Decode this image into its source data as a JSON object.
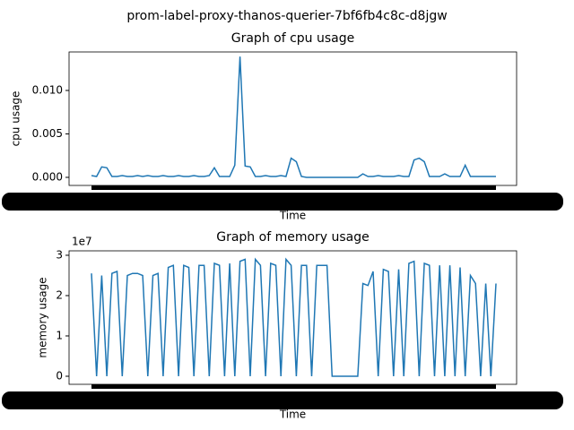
{
  "suptitle": "prom-label-proxy-thanos-querier-7bf6fb4c8c-d8jgw",
  "chart_data": [
    {
      "type": "line",
      "title": "Graph of cpu usage",
      "xlabel": "Time",
      "ylabel": "cpu usage",
      "color": "#1f77b4",
      "ylim": [
        -0.00093,
        0.01443
      ],
      "yticks": [
        {
          "value": 0,
          "label": "0.000"
        },
        {
          "value": 0.005,
          "label": "0.005"
        },
        {
          "value": 0.01,
          "label": "0.010"
        }
      ],
      "values": [
        0.0002,
        0.0001,
        0.0012,
        0.0011,
        0.0001,
        0.0001,
        0.0002,
        0.0001,
        0.0001,
        0.0002,
        0.0001,
        0.0002,
        0.0001,
        0.0001,
        0.0002,
        0.0001,
        0.0001,
        0.0002,
        0.0001,
        0.0001,
        0.0002,
        0.0001,
        0.0001,
        0.0002,
        0.0011,
        0.0001,
        0.0001,
        0.0001,
        0.0014,
        0.0139,
        0.0013,
        0.0012,
        0.0001,
        0.0001,
        0.0002,
        0.0001,
        0.0001,
        0.0002,
        0.0001,
        0.0022,
        0.0018,
        0.0001,
        0,
        0,
        0,
        0,
        0,
        0,
        0,
        0,
        0,
        0,
        0,
        0.0004,
        0.0001,
        0.0001,
        0.0002,
        0.0001,
        0.0001,
        0.0001,
        0.0002,
        0.0001,
        0.0001,
        0.002,
        0.0022,
        0.0018,
        0.0001,
        0.0001,
        0.0001,
        0.0004,
        0.0001,
        0.0001,
        0.0001,
        0.0014,
        0.0001,
        0.0001,
        0.0001,
        0.0001,
        0.0001,
        0.0001
      ]
    },
    {
      "type": "line",
      "title": "Graph of memory usage",
      "xlabel": "Time",
      "ylabel": "memory usage",
      "y_offset": "1e7",
      "color": "#1f77b4",
      "ylim": [
        -2000000,
        31100000
      ],
      "yticks": [
        {
          "value": 0,
          "label": "0"
        },
        {
          "value": 10000000,
          "label": "1"
        },
        {
          "value": 20000000,
          "label": "2"
        },
        {
          "value": 30000000,
          "label": "3"
        }
      ],
      "values": [
        25500000,
        0,
        25000000,
        0,
        25500000,
        26000000,
        0,
        25000000,
        25500000,
        25500000,
        25000000,
        0,
        25000000,
        25500000,
        0,
        27000000,
        27500000,
        0,
        27500000,
        27000000,
        0,
        27500000,
        27500000,
        0,
        28000000,
        27500000,
        0,
        28000000,
        0,
        28500000,
        29000000,
        0,
        29000000,
        27500000,
        0,
        28000000,
        27500000,
        0,
        29000000,
        27500000,
        0,
        27500000,
        27500000,
        0,
        27500000,
        27500000,
        27500000,
        0,
        0,
        0,
        0,
        0,
        0,
        23000000,
        22500000,
        26000000,
        0,
        26500000,
        26000000,
        0,
        26500000,
        0,
        28000000,
        28500000,
        0,
        28000000,
        27500000,
        0,
        27500000,
        0,
        27500000,
        0,
        27000000,
        0,
        25000000,
        23000000,
        0,
        23000000,
        0,
        23000000
      ]
    }
  ]
}
